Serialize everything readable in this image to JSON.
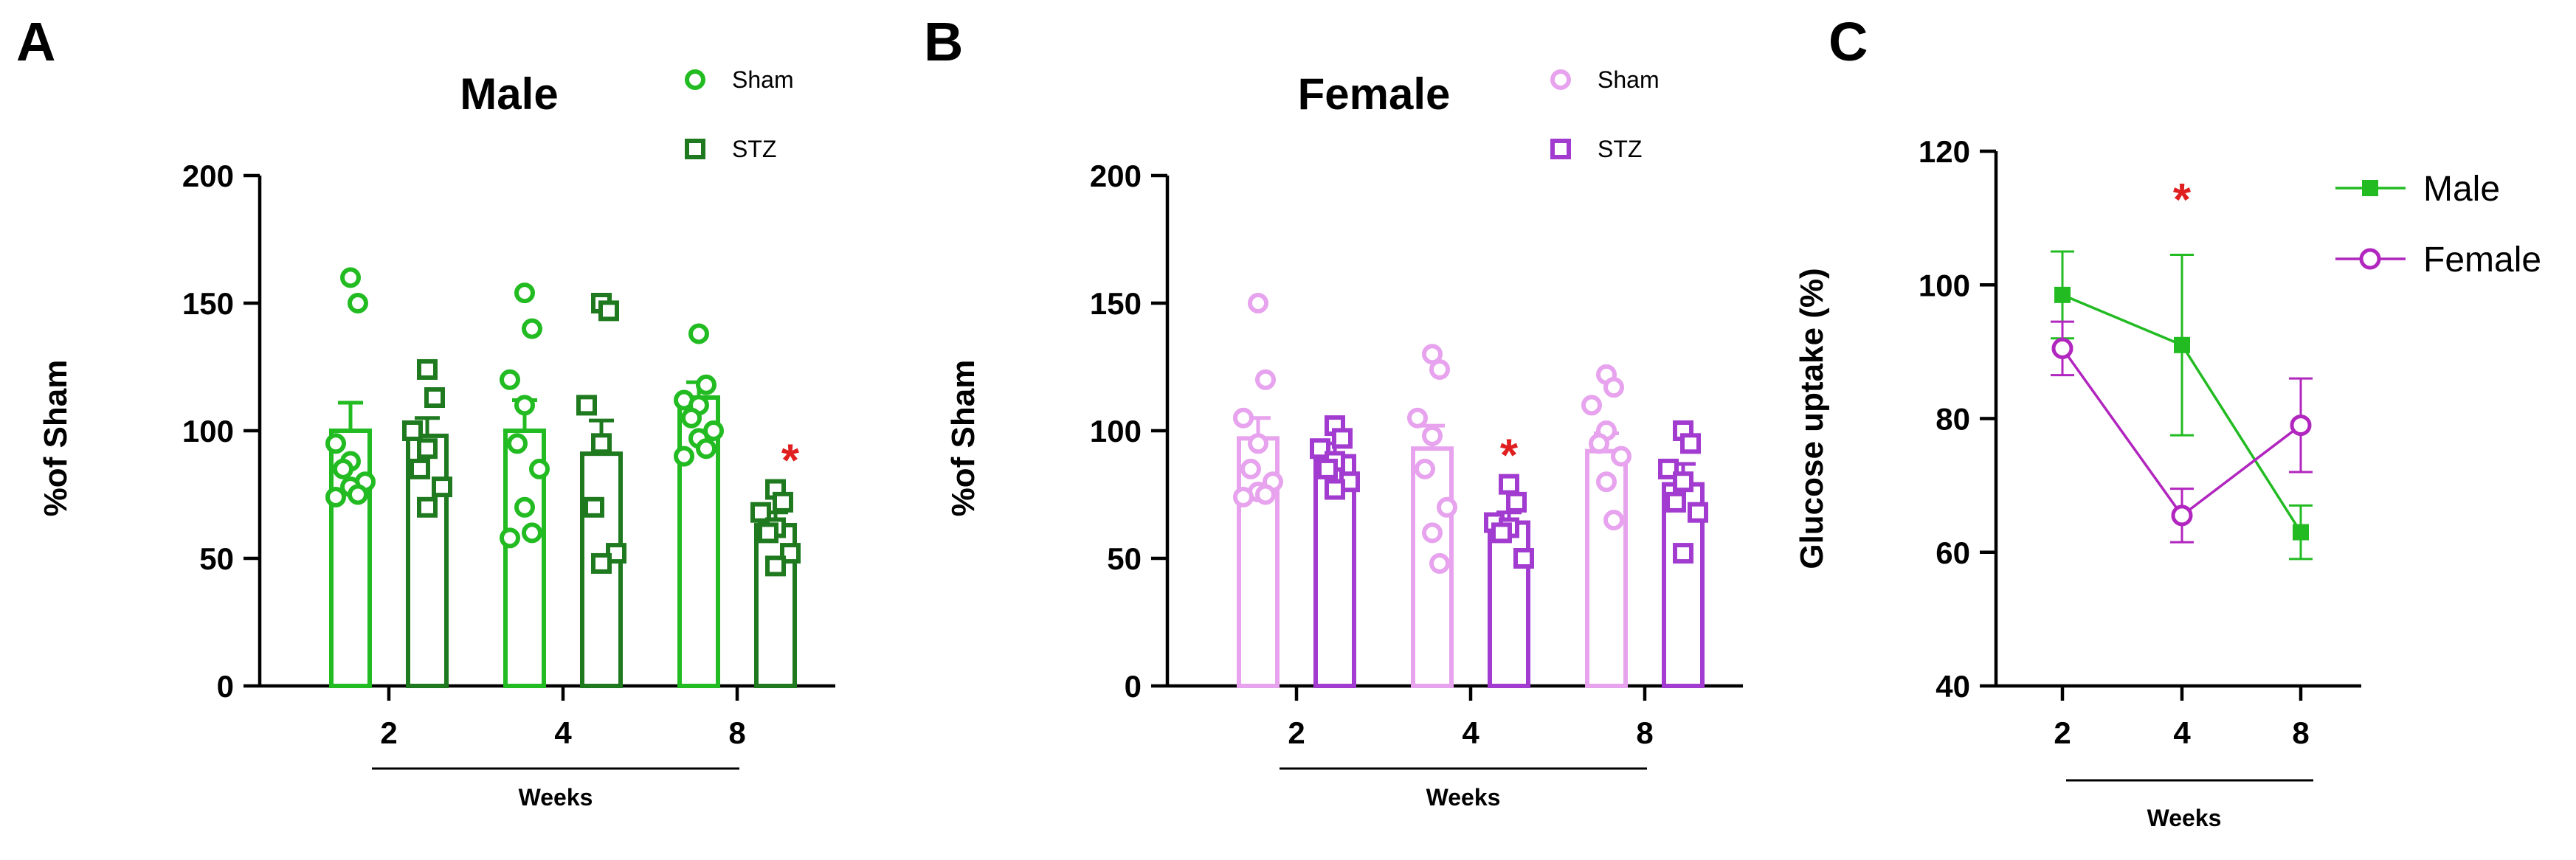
{
  "chart_data": [
    {
      "panel": "A",
      "type": "bar",
      "title": "Male",
      "ylabel": "%of Sham",
      "xlabel": "Weeks",
      "ylim": [
        0,
        200
      ],
      "yticks": [
        0,
        50,
        100,
        150,
        200
      ],
      "categories": [
        "2",
        "4",
        "8"
      ],
      "significance": [
        "",
        "",
        "*"
      ],
      "series": [
        {
          "name": "Sham",
          "marker": "circle",
          "color": "#22bb22",
          "means": [
            100,
            100,
            113
          ],
          "sem": [
            11,
            12,
            6
          ],
          "points": [
            [
              160,
              150,
              95,
              88,
              85,
              80,
              78,
              75,
              74
            ],
            [
              154,
              140,
              120,
              110,
              95,
              85,
              70,
              60,
              58
            ],
            [
              138,
              118,
              112,
              110,
              105,
              100,
              97,
              93,
              90
            ]
          ]
        },
        {
          "name": "STZ",
          "marker": "square",
          "color": "#1f7a1f",
          "means": [
            98,
            91,
            63
          ],
          "sem": [
            7,
            13,
            5
          ],
          "points": [
            [
              124,
              113,
              100,
              93,
              85,
              78,
              70
            ],
            [
              150,
              147,
              110,
              95,
              70,
              52,
              48
            ],
            [
              77,
              72,
              68,
              62,
              60,
              52,
              47
            ]
          ]
        }
      ]
    },
    {
      "panel": "B",
      "type": "bar",
      "title": "Female",
      "ylabel": "%of Sham",
      "xlabel": "Weeks",
      "ylim": [
        0,
        200
      ],
      "yticks": [
        0,
        50,
        100,
        150,
        200
      ],
      "categories": [
        "2",
        "4",
        "8"
      ],
      "significance": [
        "",
        "*",
        ""
      ],
      "series": [
        {
          "name": "Sham",
          "marker": "circle",
          "color": "#e7a3ee",
          "means": [
            97,
            93,
            92
          ],
          "sem": [
            8,
            9,
            7
          ],
          "points": [
            [
              150,
              120,
              105,
              95,
              85,
              80,
              76,
              75,
              74
            ],
            [
              130,
              124,
              105,
              98,
              85,
              70,
              60,
              48
            ],
            [
              122,
              117,
              110,
              100,
              95,
              90,
              80,
              65
            ]
          ]
        },
        {
          "name": "STZ",
          "marker": "square",
          "color": "#a23bcf",
          "means": [
            90,
            64,
            79
          ],
          "sem": [
            5,
            4,
            8
          ],
          "points": [
            [
              102,
              97,
              93,
              88,
              85,
              80,
              77
            ],
            [
              79,
              72,
              64,
              62,
              60,
              50
            ],
            [
              100,
              95,
              85,
              80,
              72,
              68,
              52
            ]
          ]
        }
      ]
    },
    {
      "panel": "C",
      "type": "line",
      "ylabel": "Glucose uptake (%)",
      "xlabel": "Weeks",
      "ylim": [
        40,
        120
      ],
      "yticks": [
        40,
        60,
        80,
        100,
        120
      ],
      "categories": [
        "2",
        "4",
        "8"
      ],
      "significance": [
        "",
        "*",
        ""
      ],
      "series": [
        {
          "name": "Male",
          "marker": "square",
          "color": "#22bb22",
          "values": [
            98.5,
            91,
            63
          ],
          "errors": [
            6.5,
            13.5,
            4
          ]
        },
        {
          "name": "Female",
          "marker": "circle",
          "color": "#b126be",
          "values": [
            90.5,
            65.5,
            79
          ],
          "errors": [
            4,
            4,
            7
          ]
        }
      ]
    }
  ]
}
